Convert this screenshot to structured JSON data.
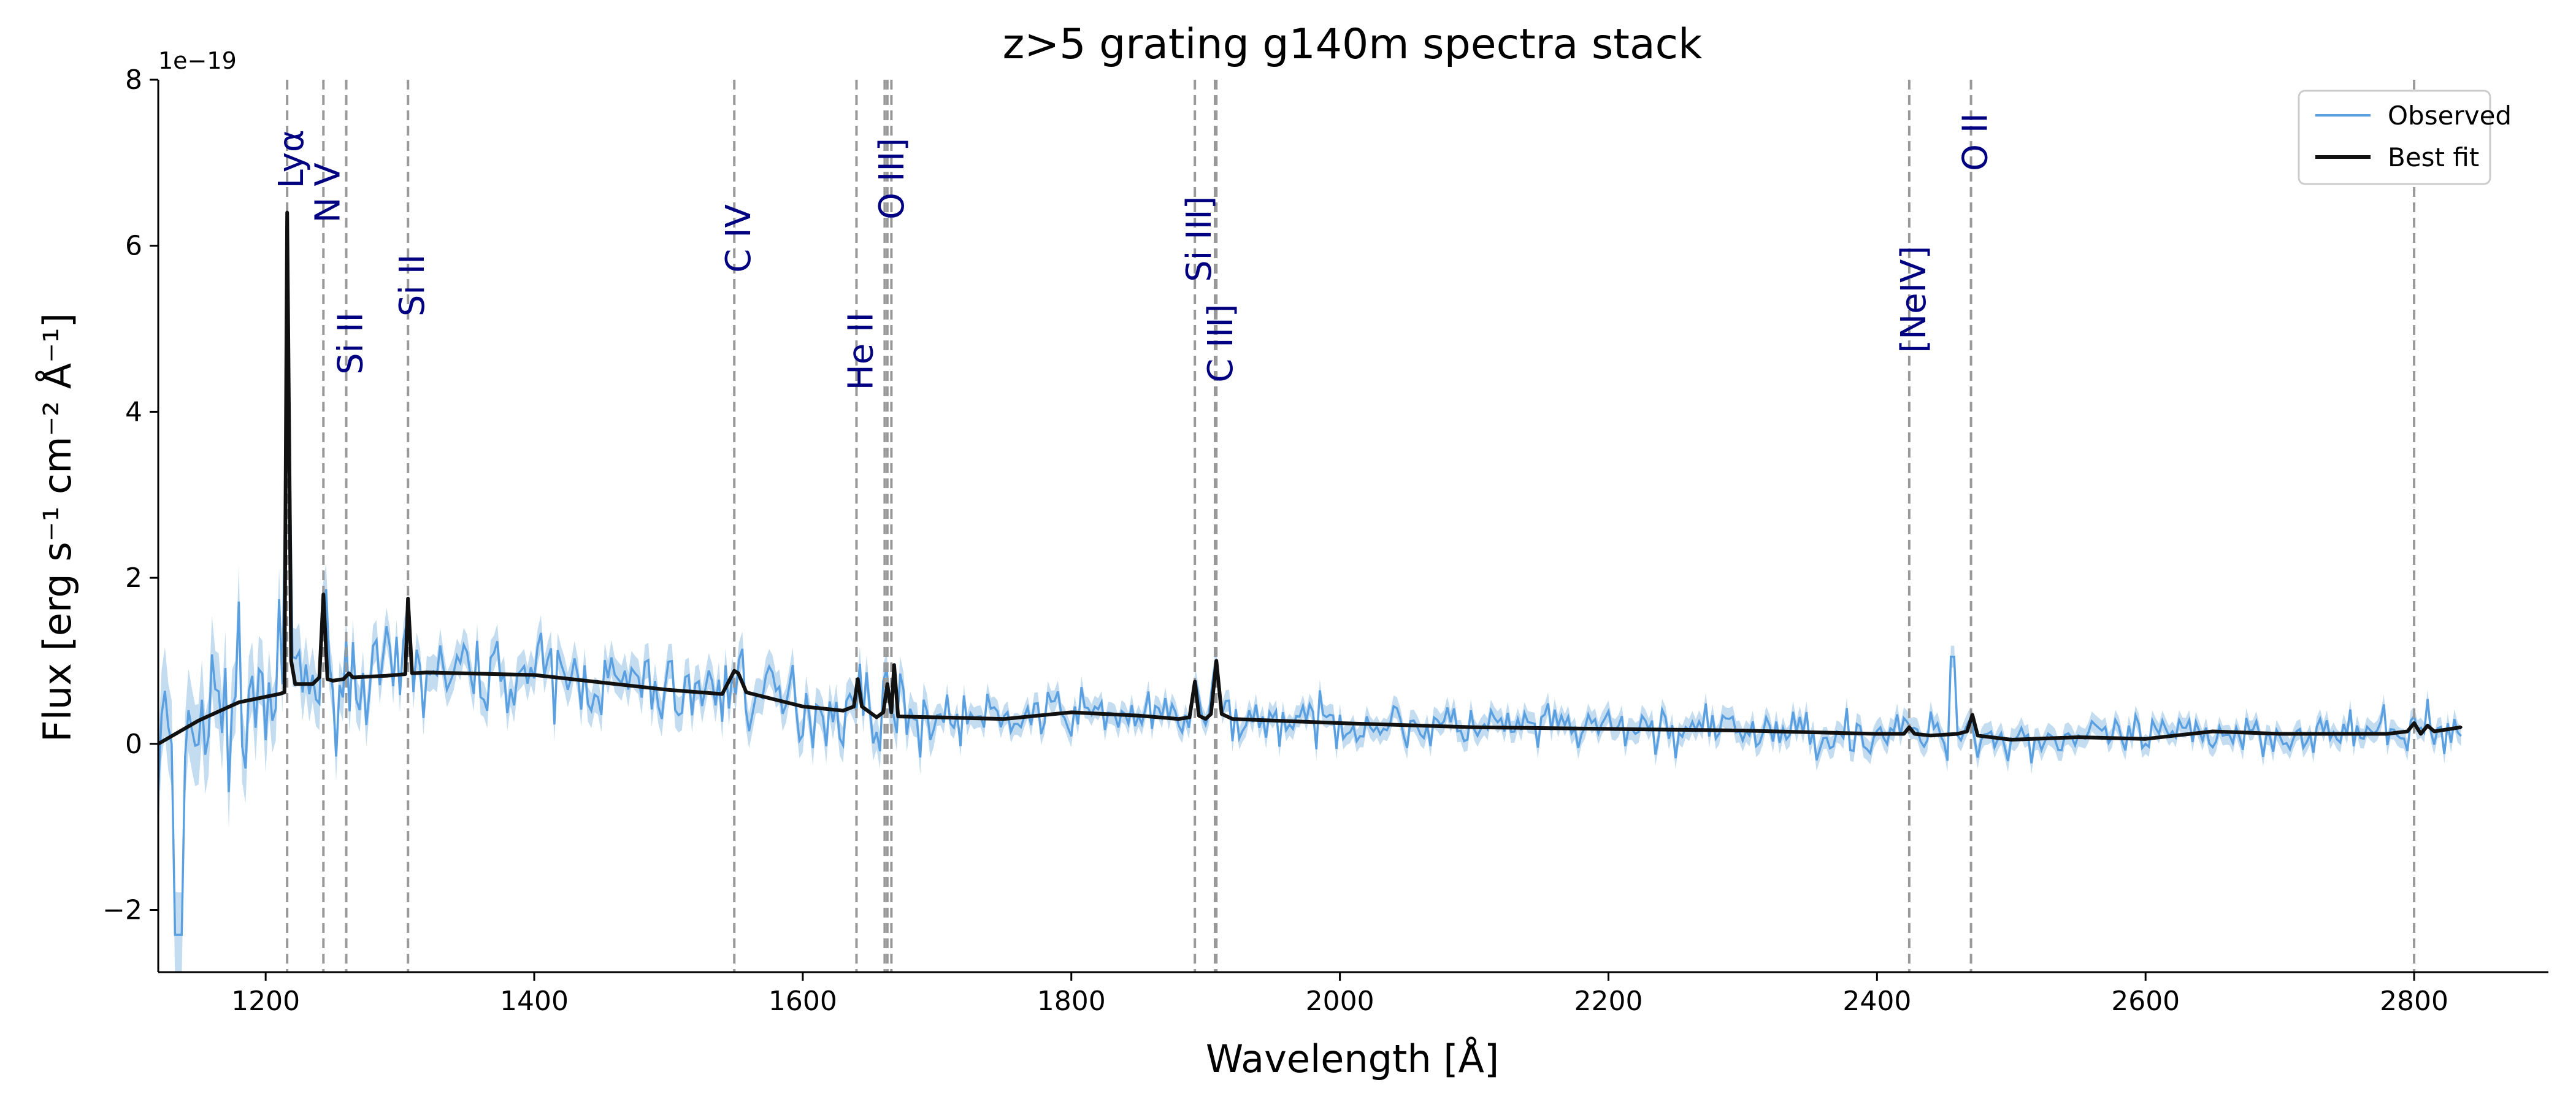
{
  "chart_data": {
    "type": "line",
    "title": "z>5 grating g140m spectra stack",
    "xlabel": "Wavelength [Å]",
    "ylabel": "Flux  [erg s⁻¹ cm⁻² Å⁻¹]",
    "y_offset_label": "1e−19",
    "xlim": [
      1120,
      2900
    ],
    "ylim": [
      -2.75,
      8.0
    ],
    "x_ticks": [
      1200,
      1400,
      1600,
      1800,
      2000,
      2200,
      2400,
      2600,
      2800
    ],
    "x_tick_labels": [
      "1200",
      "1400",
      "1600",
      "1800",
      "2000",
      "2200",
      "2400",
      "2600",
      "2800"
    ],
    "y_ticks": [
      -2,
      0,
      2,
      4,
      6,
      8
    ],
    "y_tick_labels": [
      "−2",
      "0",
      "2",
      "4",
      "6",
      "8"
    ],
    "legend_position": "upper-right",
    "legend": [
      "Observed",
      "Best fit"
    ],
    "colors": {
      "observed": "#5aa0e0",
      "uncertainty_band": "#c4dcef",
      "best_fit": "#111111",
      "line_marker": "#999999",
      "line_label": "#000080"
    },
    "observed_x_range": [
      1120,
      2835
    ],
    "best_fit": {
      "name": "Best fit",
      "x": [
        1120,
        1150,
        1180,
        1210,
        1214,
        1216,
        1219,
        1222,
        1235,
        1240,
        1243,
        1246,
        1250,
        1258,
        1262,
        1265,
        1290,
        1304,
        1306,
        1309,
        1320,
        1400,
        1500,
        1540,
        1549,
        1552,
        1558,
        1600,
        1630,
        1638,
        1641,
        1644,
        1655,
        1660,
        1663,
        1666,
        1668,
        1671,
        1700,
        1750,
        1800,
        1850,
        1880,
        1888,
        1892,
        1895,
        1900,
        1904,
        1908,
        1912,
        1920,
        2000,
        2100,
        2200,
        2300,
        2400,
        2420,
        2424,
        2428,
        2440,
        2460,
        2467,
        2471,
        2475,
        2500,
        2550,
        2600,
        2650,
        2700,
        2780,
        2795,
        2800,
        2805,
        2810,
        2815,
        2835
      ],
      "y": [
        0.0,
        0.28,
        0.5,
        0.6,
        0.62,
        6.4,
        1.0,
        0.72,
        0.72,
        0.8,
        1.8,
        0.78,
        0.76,
        0.78,
        0.85,
        0.8,
        0.82,
        0.84,
        1.75,
        0.85,
        0.86,
        0.83,
        0.65,
        0.6,
        0.88,
        0.85,
        0.62,
        0.45,
        0.4,
        0.45,
        0.78,
        0.45,
        0.32,
        0.38,
        0.72,
        0.38,
        0.95,
        0.33,
        0.32,
        0.3,
        0.38,
        0.34,
        0.3,
        0.32,
        0.75,
        0.34,
        0.3,
        0.36,
        1.0,
        0.36,
        0.3,
        0.25,
        0.2,
        0.18,
        0.16,
        0.12,
        0.12,
        0.2,
        0.12,
        0.1,
        0.12,
        0.15,
        0.35,
        0.1,
        0.05,
        0.08,
        0.06,
        0.15,
        0.12,
        0.12,
        0.15,
        0.25,
        0.12,
        0.22,
        0.15,
        0.2
      ]
    },
    "emission_lines": [
      {
        "name": "Lyα",
        "wavelength": 1216,
        "label_top_y": 7.4
      },
      {
        "name": "N V",
        "wavelength": 1243,
        "label_top_y": 7.0
      },
      {
        "name": "Si II",
        "wavelength": 1260,
        "label_top_y": 5.2
      },
      {
        "name": "Si II",
        "wavelength": 1306,
        "label_top_y": 5.9
      },
      {
        "name": "C IV",
        "wavelength": 1549,
        "label_top_y": 6.5
      },
      {
        "name": "He II",
        "wavelength": 1640,
        "label_top_y": 5.2
      },
      {
        "name": "O III]",
        "wavelength": 1663,
        "label_top_y": 7.3
      },
      {
        "name": "Si III]",
        "wavelength": 1892,
        "label_top_y": 6.6
      },
      {
        "name": "C III]",
        "wavelength": 1908,
        "label_top_y": 5.3
      },
      {
        "name": "[NeIV]",
        "wavelength": 2424,
        "label_top_y": 6.0
      },
      {
        "name": "O II",
        "wavelength": 2470,
        "label_top_y": 7.6
      }
    ],
    "extra_marker_lines": [
      1661,
      1666,
      1907,
      2800
    ]
  }
}
